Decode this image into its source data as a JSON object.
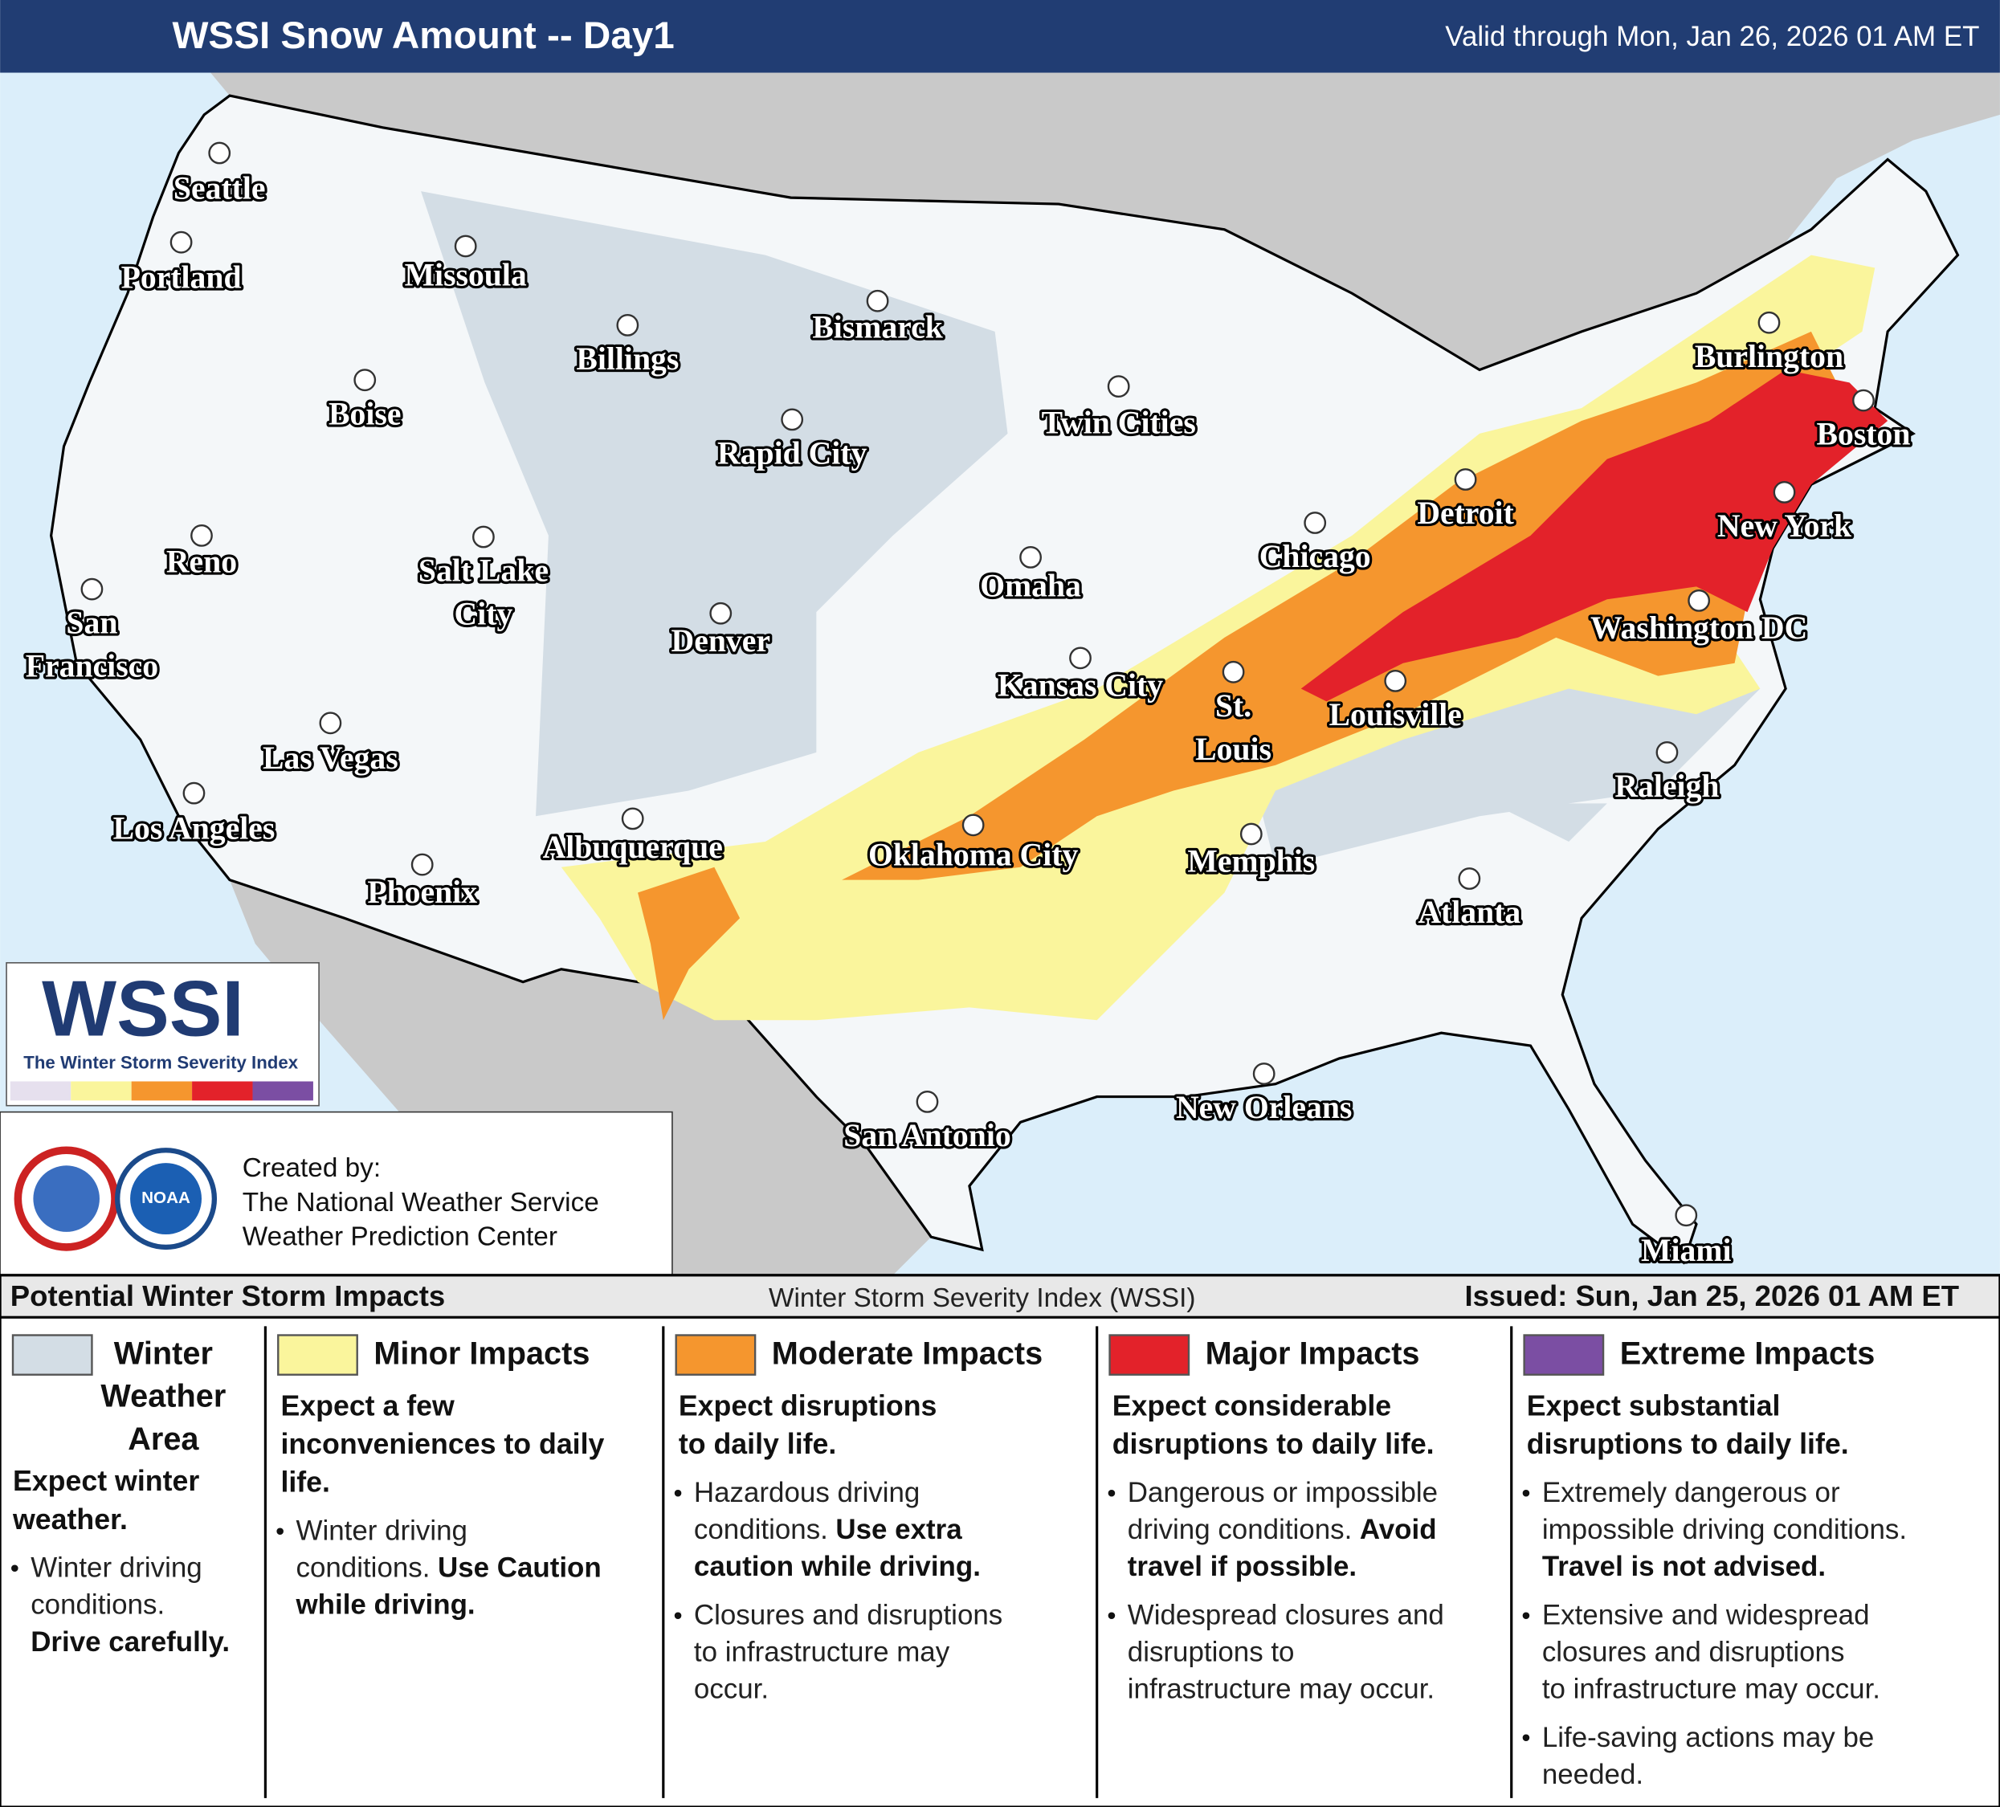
{
  "header": {
    "title": "WSSI Snow Amount -- Day1",
    "valid": "Valid through Mon, Jan 26, 2026 01 AM ET"
  },
  "cities": [
    [
      "Seattle"
    ],
    [
      "Portland"
    ],
    [
      "Missoula"
    ],
    [
      "Billings"
    ],
    [
      "Bismarck"
    ],
    [
      "Boise"
    ],
    [
      "Rapid City"
    ],
    [
      "Twin Cities"
    ],
    [
      "Reno"
    ],
    [
      "Salt Lake",
      "City"
    ],
    [
      "Omaha"
    ],
    [
      "Chicago"
    ],
    [
      "Detroit"
    ],
    [
      "Burlington"
    ],
    [
      "Boston"
    ],
    [
      "New York"
    ],
    [
      "San",
      "Francisco"
    ],
    [
      "Denver"
    ],
    [
      "Kansas City"
    ],
    [
      "St.",
      "Louis"
    ],
    [
      "Louisville"
    ],
    [
      "Washington DC"
    ],
    [
      "Las Vegas"
    ],
    [
      "Los Angeles"
    ],
    [
      "Raleigh"
    ],
    [
      "Albuquerque"
    ],
    [
      "Oklahoma City"
    ],
    [
      "Memphis"
    ],
    [
      "Phoenix"
    ],
    [
      "Atlanta"
    ],
    [
      "San Antonio"
    ],
    [
      "New Orleans"
    ],
    [
      "Miami"
    ]
  ],
  "logo": {
    "name": "WSSI",
    "subtitle": "The Winter Storm Severity Index",
    "noaa": "NOAA"
  },
  "credits": [
    "Created by:",
    "The National Weather Service",
    "Weather Prediction Center"
  ],
  "legend": {
    "title": "Potential Winter Storm Impacts",
    "index": "Winter Storm Severity Index (WSSI)",
    "issued": "Issued: Sun, Jan 25, 2026 01 AM ET",
    "columns": [
      {
        "title": [
          "Winter",
          "Weather",
          "Area"
        ],
        "color": "#d3dde5",
        "description": [
          "Expect winter",
          "weather."
        ],
        "bullets": [
          [
            {
              "text": "Winter driving"
            },
            {
              "text": "conditions."
            },
            {
              "bold": "Drive carefully."
            }
          ]
        ]
      },
      {
        "title": [
          "Minor Impacts"
        ],
        "color": "#faf59c",
        "description": [
          "Expect a few",
          "inconveniences to daily",
          "life."
        ],
        "bullets": [
          [
            {
              "text": "Winter driving"
            },
            {
              "text": "conditions.",
              "bold": "Use Caution"
            },
            {
              "bold": "while driving."
            }
          ]
        ]
      },
      {
        "title": [
          "Moderate Impacts"
        ],
        "color": "#f5962e",
        "description": [
          "Expect disruptions",
          "to daily life."
        ],
        "bullets": [
          [
            {
              "text": "Hazardous driving"
            },
            {
              "text": "conditions.",
              "bold": "Use extra"
            },
            {
              "bold": "caution while driving."
            }
          ],
          [
            {
              "text": "Closures and disruptions"
            },
            {
              "text": "to infrastructure may"
            },
            {
              "text": "occur."
            }
          ]
        ]
      },
      {
        "title": [
          "Major Impacts"
        ],
        "color": "#e3222a",
        "description": [
          "Expect considerable",
          "disruptions to daily life."
        ],
        "bullets": [
          [
            {
              "text": "Dangerous or impossible"
            },
            {
              "text": "driving conditions.",
              "bold": "Avoid"
            },
            {
              "bold": "travel if possible."
            }
          ],
          [
            {
              "text": "Widespread closures and"
            },
            {
              "text": "disruptions to"
            },
            {
              "text": "infrastructure may occur."
            }
          ]
        ]
      },
      {
        "title": [
          "Extreme Impacts"
        ],
        "color": "#7b4ea3",
        "description": [
          "Expect substantial",
          "disruptions to daily life."
        ],
        "bullets": [
          [
            {
              "text": "Extremely dangerous or"
            },
            {
              "text": "impossible driving conditions."
            },
            {
              "bold": "Travel is not advised."
            }
          ],
          [
            {
              "text": "Extensive and widespread"
            },
            {
              "text": "closures and disruptions"
            },
            {
              "text": "to infrastructure may occur."
            }
          ],
          [
            {
              "text": "Life-saving actions may be"
            },
            {
              "text": "needed."
            }
          ]
        ]
      }
    ]
  }
}
